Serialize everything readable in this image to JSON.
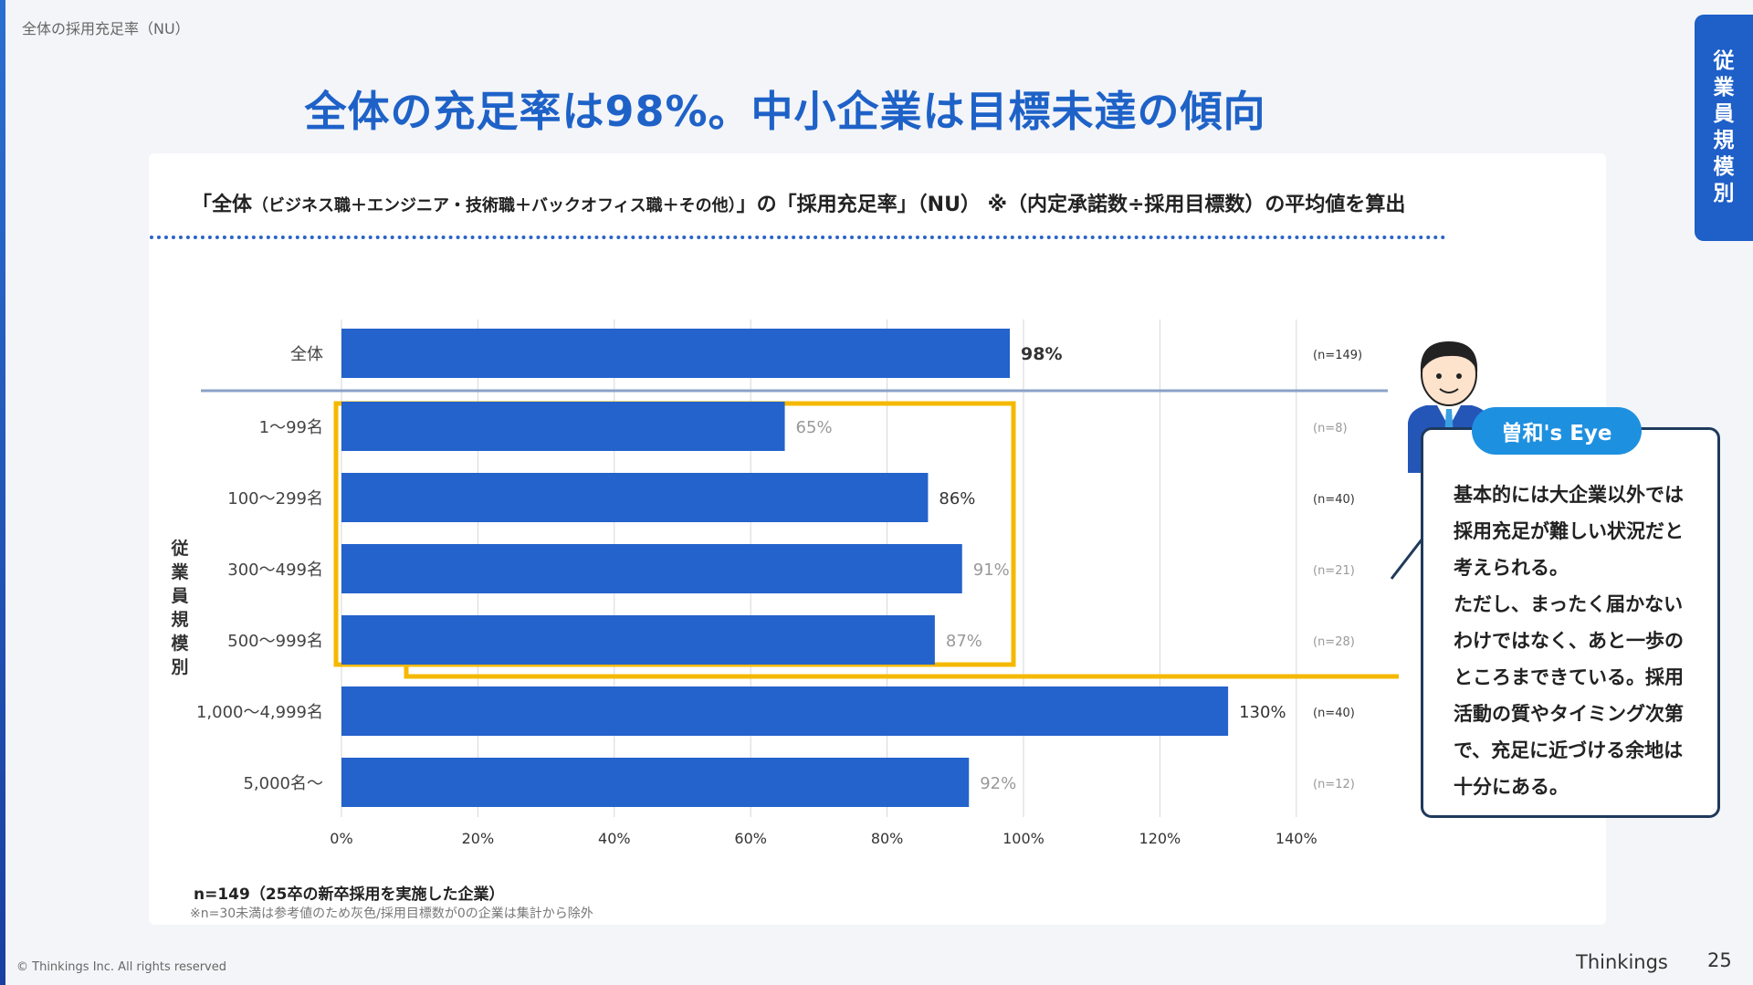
{
  "breadcrumb": "全体の採用充足率（NU）",
  "title": "全体の充足率は98%。中小企業は目標未達の傾向",
  "side_tab": "従業員規模別",
  "subtitle_a": "「全体",
  "subtitle_b": "（ビジネス職＋エンジニア・技術職＋バックオフィス職＋その他）",
  "subtitle_c": "」の「採用充足率」（NU） ※（内定承諾数÷採用目標数）の平均値を算出",
  "chart_data": {
    "type": "bar",
    "orientation": "horizontal",
    "y_axis_label": "従業員規模別",
    "categories": [
      "全体",
      "1〜99名",
      "100〜299名",
      "300〜499名",
      "500〜999名",
      "1,000〜4,999名",
      "5,000名〜"
    ],
    "values": [
      98,
      65,
      86,
      91,
      87,
      130,
      92
    ],
    "value_labels": [
      "98%",
      "65%",
      "86%",
      "91%",
      "87%",
      "130%",
      "92%"
    ],
    "sample_sizes": [
      "(n=149)",
      "(n=8)",
      "(n=40)",
      "(n=21)",
      "(n=28)",
      "(n=40)",
      "(n=12)"
    ],
    "reference_flags": [
      false,
      true,
      false,
      true,
      true,
      false,
      true
    ],
    "xlim": [
      0,
      140
    ],
    "x_ticks": [
      "0%",
      "20%",
      "40%",
      "60%",
      "80%",
      "100%",
      "120%",
      "140%"
    ],
    "highlighted_categories": [
      "1〜99名",
      "100〜299名",
      "300〜499名",
      "500〜999名"
    ],
    "bar_color": "#2462cc",
    "highlight_color": "#f5b800",
    "grid": true
  },
  "notes": {
    "line1": "n=149（25卒の新卒採用を実施した企業）",
    "line2": "※n=30未満は参考値のため灰色/採用目標数が0の企業は集計から除外"
  },
  "callout": {
    "badge": "曽和's Eye",
    "lines": [
      "基本的には大企業以外では",
      "採用充足が難しい状況だと",
      "考えられる。",
      "ただし、まったく届かない",
      "わけではなく、あと一歩の",
      "ところまできている。採用",
      "活動の質やタイミング次第",
      "で、充足に近づける余地は",
      "十分にある。"
    ]
  },
  "footer": {
    "copyright": "© Thinkings Inc. All rights reserved",
    "brand": "Thinkings",
    "page": "25"
  }
}
